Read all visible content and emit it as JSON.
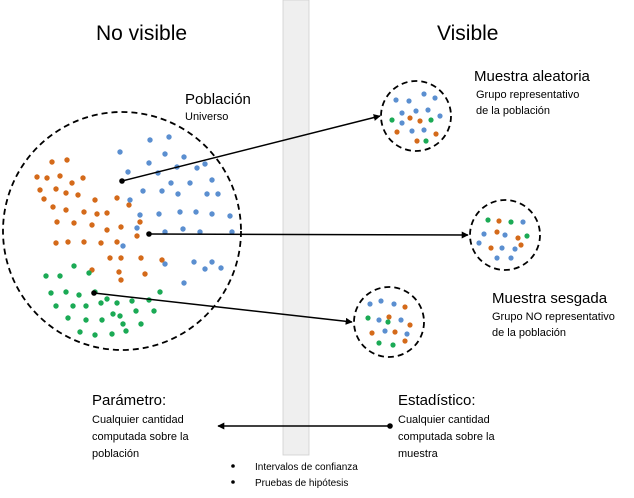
{
  "headers": {
    "left": "No visible",
    "right": "Visible"
  },
  "population": {
    "title": "Población",
    "subtitle": "Universo"
  },
  "random_sample": {
    "title": "Muestra aleatoria",
    "lines": [
      "Grupo representativo",
      "de la población"
    ]
  },
  "biased_sample": {
    "title": "Muestra sesgada",
    "lines": [
      "Grupo NO representativo",
      "de la población"
    ]
  },
  "parameter": {
    "title": "Parámetro:",
    "lines": [
      "Cualquier cantidad",
      "computada sobre la",
      "población"
    ]
  },
  "statistic": {
    "title": "Estadístico:",
    "lines": [
      "Cualquier cantidad",
      "computada sobre la",
      "muestra"
    ]
  },
  "bullets": [
    "Intervalos de confianza",
    "Pruebas de hipótesis"
  ],
  "colors": {
    "orange": "#D46A1A",
    "blue": "#5B8FD0",
    "green": "#1BAA55",
    "divider": "#EFEFEF",
    "dash": "#000000"
  }
}
